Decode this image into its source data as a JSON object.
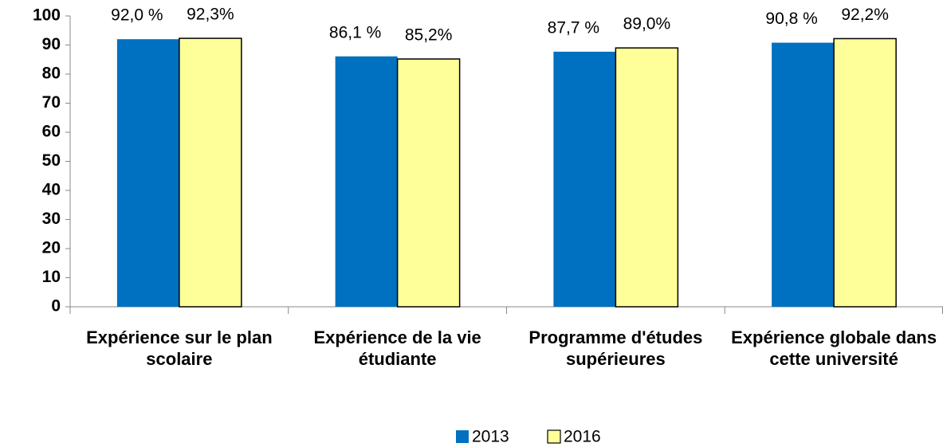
{
  "chart_data": {
    "type": "bar",
    "categories": [
      "Expérience sur le plan scolaire",
      "Expérience de la vie étudiante",
      "Programme d'études supérieures",
      "Expérience globale dans cette université"
    ],
    "series": [
      {
        "name": "2013",
        "color": "#0070c0",
        "values": [
          92.0,
          86.1,
          87.7,
          90.8
        ],
        "value_labels": [
          "92,0 %",
          "86,1 %",
          "87,7 %",
          "90,8 %"
        ]
      },
      {
        "name": "2016",
        "color": "#ffff99",
        "values": [
          92.3,
          85.2,
          89.0,
          92.2
        ],
        "value_labels": [
          "92,3%",
          "85,2%",
          "89,0%",
          "92,2%"
        ]
      }
    ],
    "ylim": [
      0,
      100
    ],
    "yticks": [
      0,
      10,
      20,
      30,
      40,
      50,
      60,
      70,
      80,
      90,
      100
    ],
    "legend": "bottom"
  }
}
